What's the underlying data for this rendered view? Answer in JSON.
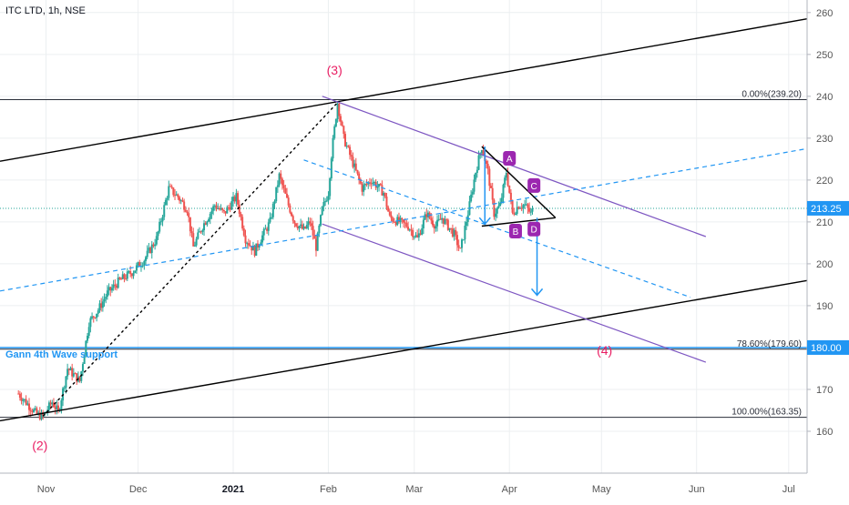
{
  "header": {
    "symbol_title": "ITC LTD, 1h, NSE"
  },
  "colors": {
    "up": "#26a69a",
    "down": "#ef5350",
    "trend": "#000000",
    "channel": "#7e57c2",
    "dashed": "#2196f3",
    "wave_label": "#e91e63",
    "price_badge": "#2196f3",
    "abcd_badge": "#9c27b0",
    "grid": "#eceff1",
    "axis_text": "#555555"
  },
  "chart_data": {
    "type": "candlestick",
    "title": "ITC LTD, 1h, NSE",
    "x_axis": {
      "tick_labels": [
        "Nov",
        "Dec",
        "2021",
        "Feb",
        "Mar",
        "Apr",
        "May",
        "Jun",
        "Jul"
      ],
      "tick_days": [
        0,
        30,
        61,
        92,
        120,
        151,
        181,
        212,
        242
      ]
    },
    "y_axis": {
      "ylim": [
        150,
        263
      ],
      "ticks": [
        160,
        170,
        180,
        190,
        200,
        210,
        220,
        230,
        240,
        250,
        260
      ]
    },
    "price_path": [
      [
        -9,
        169
      ],
      [
        -6,
        166.5
      ],
      [
        -3,
        164
      ],
      [
        -1,
        163.6
      ],
      [
        2,
        167
      ],
      [
        4,
        164.5
      ],
      [
        7,
        175
      ],
      [
        11,
        172
      ],
      [
        14,
        186
      ],
      [
        17,
        189
      ],
      [
        20,
        193
      ],
      [
        24,
        196
      ],
      [
        28,
        198
      ],
      [
        32,
        201
      ],
      [
        36,
        206
      ],
      [
        40,
        218
      ],
      [
        43,
        216
      ],
      [
        46,
        213
      ],
      [
        48,
        204
      ],
      [
        51,
        209
      ],
      [
        55,
        214
      ],
      [
        58,
        212
      ],
      [
        62,
        216
      ],
      [
        65,
        206
      ],
      [
        68,
        203
      ],
      [
        70,
        206
      ],
      [
        73,
        210
      ],
      [
        76,
        221
      ],
      [
        79,
        214
      ],
      [
        81,
        210
      ],
      [
        84,
        208
      ],
      [
        86,
        210
      ],
      [
        88,
        204
      ],
      [
        90,
        213
      ],
      [
        92,
        217
      ],
      [
        93,
        226
      ],
      [
        95,
        238.5
      ],
      [
        97,
        230
      ],
      [
        100,
        224
      ],
      [
        103,
        218
      ],
      [
        106,
        220
      ],
      [
        110,
        217
      ],
      [
        112,
        211
      ],
      [
        115,
        210
      ],
      [
        118,
        209
      ],
      [
        121,
        206
      ],
      [
        124,
        212
      ],
      [
        127,
        209
      ],
      [
        129,
        211
      ],
      [
        133,
        207
      ],
      [
        135,
        203
      ],
      [
        138,
        214
      ],
      [
        140,
        222
      ],
      [
        142,
        228
      ],
      [
        144,
        222
      ],
      [
        146,
        212
      ],
      [
        148,
        214
      ],
      [
        150,
        222
      ],
      [
        152,
        212
      ],
      [
        154,
        214
      ],
      [
        156,
        214
      ],
      [
        158,
        212
      ],
      [
        159,
        213.25
      ]
    ],
    "last_price": 213.25,
    "fib_levels": [
      {
        "label": "0.00%(239.20)",
        "price": 239.2
      },
      {
        "label": "78.60%(179.60)",
        "price": 179.6
      },
      {
        "label": "100.00%(163.35)",
        "price": 163.35
      }
    ],
    "highlighted_price": "180.00",
    "current_price_label": "213.25",
    "wave_labels": [
      {
        "text": "(3)",
        "day": 94,
        "price": 245.2
      },
      {
        "text": "(2)",
        "day": -2,
        "price": 155.5
      },
      {
        "text": "(4)",
        "day": 182,
        "price": 178.3
      }
    ],
    "pattern_points": [
      {
        "text": "A",
        "day": 151,
        "price": 225.2
      },
      {
        "text": "B",
        "day": 153,
        "price": 207.8
      },
      {
        "text": "C",
        "day": 159,
        "price": 218.7
      },
      {
        "text": "D",
        "day": 159,
        "price": 208.3
      }
    ],
    "annotation": "Gann 4th Wave support",
    "trend_lines": [
      {
        "style": "solid",
        "color": "trend",
        "from": [
          -15,
          224.5
        ],
        "to": [
          248,
          258.5
        ]
      },
      {
        "style": "solid",
        "color": "trend",
        "from": [
          -15,
          162.5
        ],
        "to": [
          248,
          196
        ]
      },
      {
        "style": "solid",
        "color": "channel",
        "from": [
          90,
          240
        ],
        "to": [
          215,
          206.5
        ]
      },
      {
        "style": "solid",
        "color": "channel",
        "from": [
          90,
          209.5
        ],
        "to": [
          215,
          176.5
        ]
      },
      {
        "style": "dashed",
        "color": "dashed",
        "from": [
          -15,
          193.5
        ],
        "to": [
          248,
          227.5
        ]
      },
      {
        "style": "dashed",
        "color": "dashed",
        "from": [
          84,
          224.8
        ],
        "to": [
          210,
          192
        ]
      },
      {
        "style": "dashed",
        "color": "trend",
        "from": [
          -1,
          163.6
        ],
        "to": [
          95,
          238.5
        ]
      },
      {
        "style": "solid",
        "color": "trend",
        "from": [
          142,
          228
        ],
        "to": [
          166,
          211
        ]
      },
      {
        "style": "solid",
        "color": "trend",
        "from": [
          142,
          209
        ],
        "to": [
          166,
          211
        ]
      }
    ],
    "arrows": [
      {
        "from": [
          143,
          228
        ],
        "to": [
          143,
          209.5
        ]
      },
      {
        "from": [
          160,
          211
        ],
        "to": [
          160,
          192.5
        ]
      }
    ]
  }
}
